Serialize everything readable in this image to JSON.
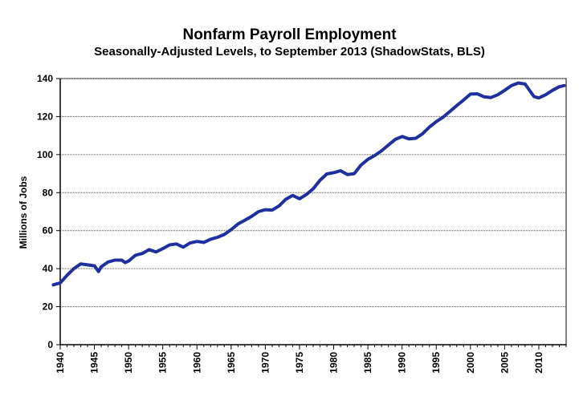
{
  "chart_data": {
    "type": "line",
    "title": "Nonfarm Payroll Employment",
    "subtitle": "Seasonally-Adjusted Levels, to September 2013 (ShadowStats, BLS)",
    "xlabel": "",
    "ylabel": "Millions of Jobs",
    "xlim": [
      1940,
      2014
    ],
    "ylim": [
      0,
      140
    ],
    "yticks": [
      0,
      20,
      40,
      60,
      80,
      100,
      120,
      140
    ],
    "xticks": [
      1940,
      1945,
      1950,
      1955,
      1960,
      1965,
      1970,
      1975,
      1980,
      1985,
      1990,
      1995,
      2000,
      2005,
      2010
    ],
    "grid": true,
    "line_color": "#1f2f9f",
    "series": [
      {
        "name": "",
        "points": [
          [
            1939.0,
            31.5
          ],
          [
            1940.0,
            32.5
          ],
          [
            1941.0,
            36.5
          ],
          [
            1942.0,
            40.0
          ],
          [
            1943.0,
            42.5
          ],
          [
            1944.0,
            42.0
          ],
          [
            1945.0,
            41.5
          ],
          [
            1945.6,
            38.5
          ],
          [
            1946.0,
            41.0
          ],
          [
            1947.0,
            43.5
          ],
          [
            1948.0,
            44.5
          ],
          [
            1949.0,
            44.5
          ],
          [
            1949.5,
            43.2
          ],
          [
            1950.0,
            44.0
          ],
          [
            1951.0,
            47.0
          ],
          [
            1952.0,
            48.0
          ],
          [
            1953.0,
            50.0
          ],
          [
            1954.0,
            48.8
          ],
          [
            1955.0,
            50.5
          ],
          [
            1956.0,
            52.5
          ],
          [
            1957.0,
            53.0
          ],
          [
            1958.0,
            51.3
          ],
          [
            1959.0,
            53.5
          ],
          [
            1960.0,
            54.3
          ],
          [
            1961.0,
            53.8
          ],
          [
            1962.0,
            55.5
          ],
          [
            1963.0,
            56.5
          ],
          [
            1964.0,
            58.0
          ],
          [
            1965.0,
            60.5
          ],
          [
            1966.0,
            63.5
          ],
          [
            1967.0,
            65.5
          ],
          [
            1968.0,
            67.5
          ],
          [
            1969.0,
            70.0
          ],
          [
            1970.0,
            71.0
          ],
          [
            1971.0,
            70.8
          ],
          [
            1972.0,
            73.0
          ],
          [
            1973.0,
            76.5
          ],
          [
            1974.0,
            78.5
          ],
          [
            1975.0,
            76.8
          ],
          [
            1976.0,
            79.0
          ],
          [
            1977.0,
            82.0
          ],
          [
            1978.0,
            86.5
          ],
          [
            1979.0,
            89.8
          ],
          [
            1980.0,
            90.5
          ],
          [
            1981.0,
            91.5
          ],
          [
            1982.0,
            89.5
          ],
          [
            1983.0,
            90.0
          ],
          [
            1984.0,
            94.5
          ],
          [
            1985.0,
            97.5
          ],
          [
            1986.0,
            99.5
          ],
          [
            1987.0,
            102.0
          ],
          [
            1988.0,
            105.0
          ],
          [
            1989.0,
            108.0
          ],
          [
            1990.0,
            109.5
          ],
          [
            1991.0,
            108.3
          ],
          [
            1992.0,
            108.6
          ],
          [
            1993.0,
            111.0
          ],
          [
            1994.0,
            114.5
          ],
          [
            1995.0,
            117.3
          ],
          [
            1996.0,
            119.7
          ],
          [
            1997.0,
            122.7
          ],
          [
            1998.0,
            125.8
          ],
          [
            1999.0,
            128.7
          ],
          [
            2000.0,
            131.8
          ],
          [
            2001.0,
            132.0
          ],
          [
            2002.0,
            130.4
          ],
          [
            2003.0,
            130.0
          ],
          [
            2004.0,
            131.5
          ],
          [
            2005.0,
            133.8
          ],
          [
            2006.0,
            136.3
          ],
          [
            2007.0,
            137.7
          ],
          [
            2008.0,
            137.1
          ],
          [
            2008.7,
            133.5
          ],
          [
            2009.3,
            130.5
          ],
          [
            2010.0,
            129.8
          ],
          [
            2011.0,
            131.5
          ],
          [
            2012.0,
            133.8
          ],
          [
            2013.0,
            135.7
          ],
          [
            2013.7,
            136.3
          ]
        ]
      }
    ]
  }
}
